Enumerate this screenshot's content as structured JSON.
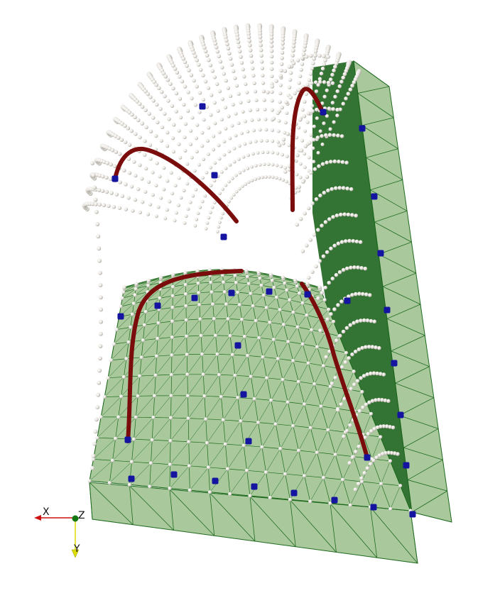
{
  "scene": {
    "background": "#ffffff",
    "colors": {
      "mesh_fill": "#a9c99d",
      "mesh_line": "#1e6a1e",
      "dark_green": "#0f5a0f",
      "particle": "#ece8e2",
      "particle_shadow": "#b0aca6",
      "marker": "#1414a0",
      "trajectory": "#7a0c0c",
      "x_axis": "#cc1111",
      "y_axis": "#dddd00",
      "z_axis": "#117711"
    }
  },
  "axes": {
    "x_label": "X",
    "y_label": "Y",
    "z_label": "Z"
  }
}
